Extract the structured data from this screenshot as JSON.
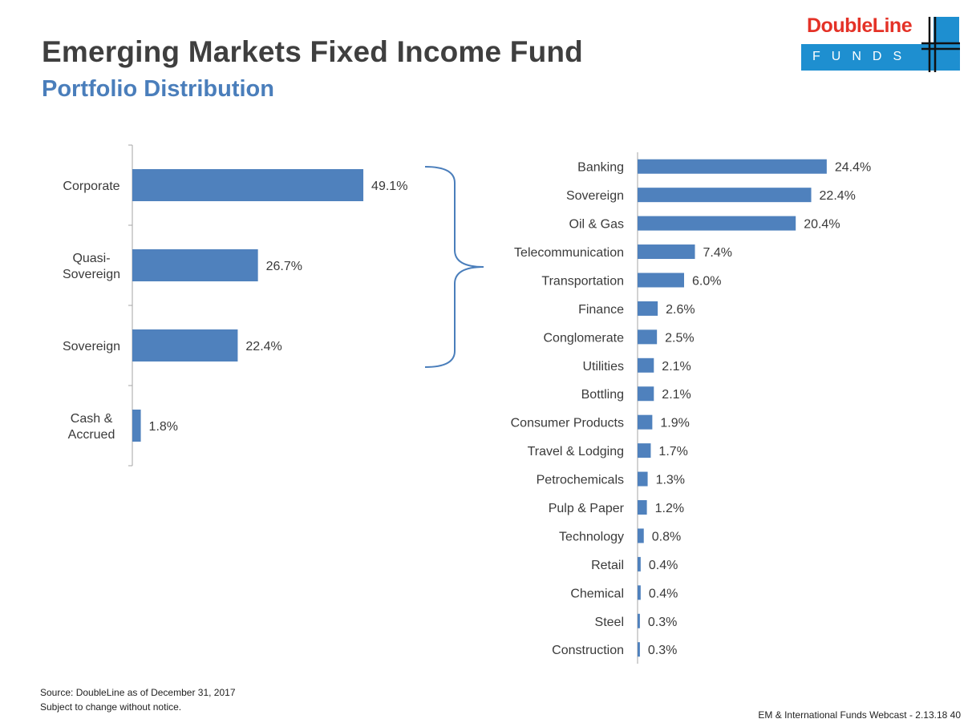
{
  "header": {
    "title": "Emerging Markets Fixed Income Fund",
    "subtitle": "Portfolio Distribution"
  },
  "logo": {
    "word": "DoubleLine",
    "funds": "FUNDS",
    "colors": {
      "red": "#e43227",
      "blue": "#1e8fd0"
    }
  },
  "colors": {
    "bar": "#4f81bd",
    "title": "#3f3f3f",
    "subtitle": "#4a7ebb",
    "axis": "#a6a6a6"
  },
  "chart_data": [
    {
      "type": "bar",
      "orientation": "horizontal",
      "categories": [
        [
          "Corporate"
        ],
        [
          "Quasi-",
          "Sovereign"
        ],
        [
          "Sovereign"
        ],
        [
          "Cash &",
          "Accrued"
        ]
      ],
      "values": [
        49.1,
        26.7,
        22.4,
        1.8
      ],
      "value_labels": [
        "49.1%",
        "26.7%",
        "22.4%",
        "1.8%"
      ],
      "unit": "%",
      "xlim": [
        0,
        60
      ],
      "grid": false,
      "legend": "none"
    },
    {
      "type": "bar",
      "orientation": "horizontal",
      "categories": [
        [
          "Banking"
        ],
        [
          "Sovereign"
        ],
        [
          "Oil & Gas"
        ],
        [
          "Telecommunication"
        ],
        [
          "Transportation"
        ],
        [
          "Finance"
        ],
        [
          "Conglomerate"
        ],
        [
          "Utilities"
        ],
        [
          "Bottling"
        ],
        [
          "Consumer Products"
        ],
        [
          "Travel & Lodging"
        ],
        [
          "Petrochemicals"
        ],
        [
          "Pulp & Paper"
        ],
        [
          "Technology"
        ],
        [
          "Retail"
        ],
        [
          "Chemical"
        ],
        [
          "Steel"
        ],
        [
          "Construction"
        ]
      ],
      "values": [
        24.4,
        22.4,
        20.4,
        7.4,
        6.0,
        2.6,
        2.5,
        2.1,
        2.1,
        1.9,
        1.7,
        1.3,
        1.2,
        0.8,
        0.4,
        0.4,
        0.3,
        0.3
      ],
      "value_labels": [
        "24.4%",
        "22.4%",
        "20.4%",
        "7.4%",
        "6.0%",
        "2.6%",
        "2.5%",
        "2.1%",
        "2.1%",
        "1.9%",
        "1.7%",
        "1.3%",
        "1.2%",
        "0.8%",
        "0.4%",
        "0.4%",
        "0.3%",
        "0.3%"
      ],
      "unit": "%",
      "xlim": [
        0,
        30
      ],
      "grid": false,
      "legend": "none"
    }
  ],
  "footer": {
    "source_line1": "Source:  DoubleLine as of December 31, 2017",
    "source_line2": "Subject to change without notice.",
    "webcast": "EM & International Funds Webcast - 2.13.18  40"
  }
}
